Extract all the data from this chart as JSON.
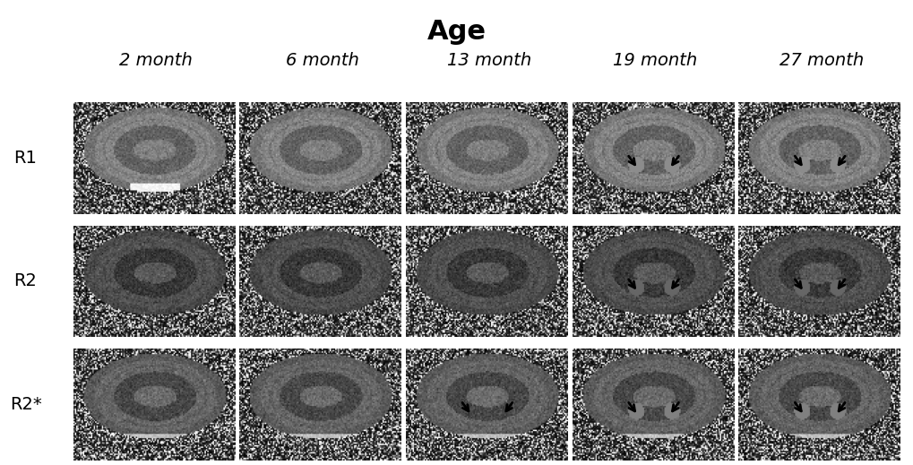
{
  "title": "Age",
  "title_fontsize": 22,
  "title_fontweight": "bold",
  "col_labels": [
    "2 month",
    "6 month",
    "13 month",
    "19 month",
    "27 month"
  ],
  "row_labels": [
    "R1",
    "R2",
    "R2*"
  ],
  "col_label_fontsize": 14,
  "row_label_fontsize": 14,
  "col_label_style": "italic",
  "row_label_style": "normal",
  "figsize": [
    10.2,
    5.19
  ],
  "dpi": 100,
  "background_color": "#ffffff",
  "arrows": {
    "R1": [
      3,
      4
    ],
    "R2": [
      3,
      4
    ],
    "R2*": [
      2,
      3,
      4
    ]
  },
  "arrow_color": "black",
  "arrow_lw": 2.5
}
